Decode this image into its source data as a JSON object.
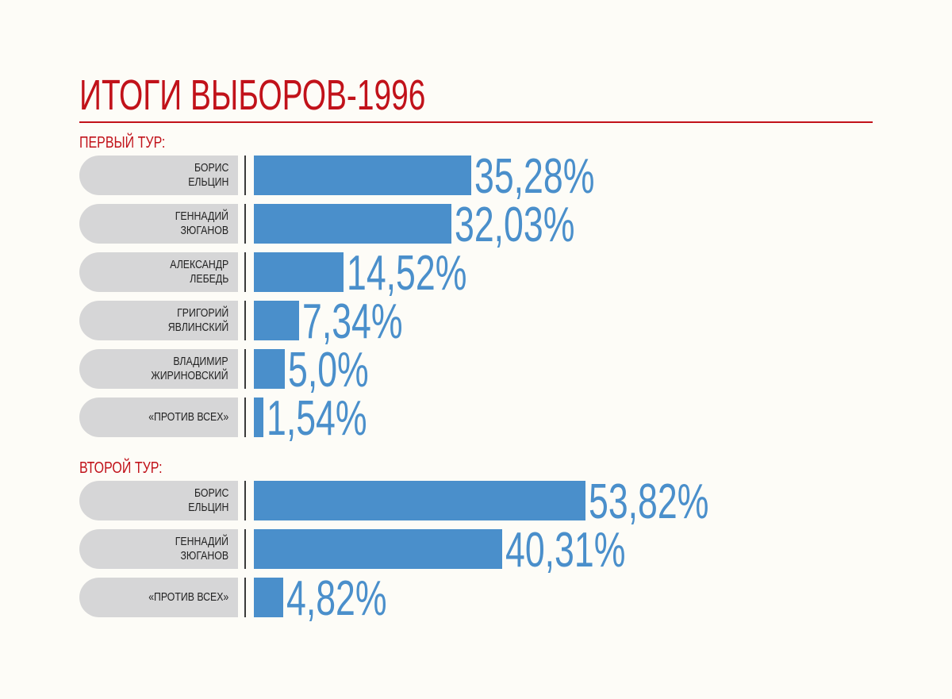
{
  "title": "ИТОГИ ВЫБОРОВ-1996",
  "colors": {
    "accent": "#c1121a",
    "bar": "#4a8fcb",
    "pill": "#d6d6d7",
    "background": "#fdfcf7"
  },
  "chart_data": [
    {
      "type": "bar",
      "orientation": "horizontal",
      "title": "ПЕРВЫЙ ТУР:",
      "categories": [
        "БОРИС\nЕЛЬЦИН",
        "ГЕННАДИЙ\nЗЮГАНОВ",
        "АЛЕКСАНДР\nЛЕБЕДЬ",
        "ГРИГОРИЙ\nЯВЛИНСКИЙ",
        "ВЛАДИМИР\nЖИРИНОВСКИЙ",
        "«ПРОТИВ ВСЕХ»"
      ],
      "values": [
        35.28,
        32.03,
        14.52,
        7.34,
        5.0,
        1.54
      ],
      "labels": [
        "35,28%",
        "32,03%",
        "14,52%",
        "7,34%",
        "5,0%",
        "1,54%"
      ],
      "xlim": [
        0,
        100
      ],
      "grid": false
    },
    {
      "type": "bar",
      "orientation": "horizontal",
      "title": "ВТОРОЙ ТУР:",
      "categories": [
        "БОРИС\nЕЛЬЦИН",
        "ГЕННАДИЙ\nЗЮГАНОВ",
        "«ПРОТИВ ВСЕХ»"
      ],
      "values": [
        53.82,
        40.31,
        4.82
      ],
      "labels": [
        "53,82%",
        "40,31%",
        "4,82%"
      ],
      "xlim": [
        0,
        100
      ],
      "grid": false
    }
  ]
}
